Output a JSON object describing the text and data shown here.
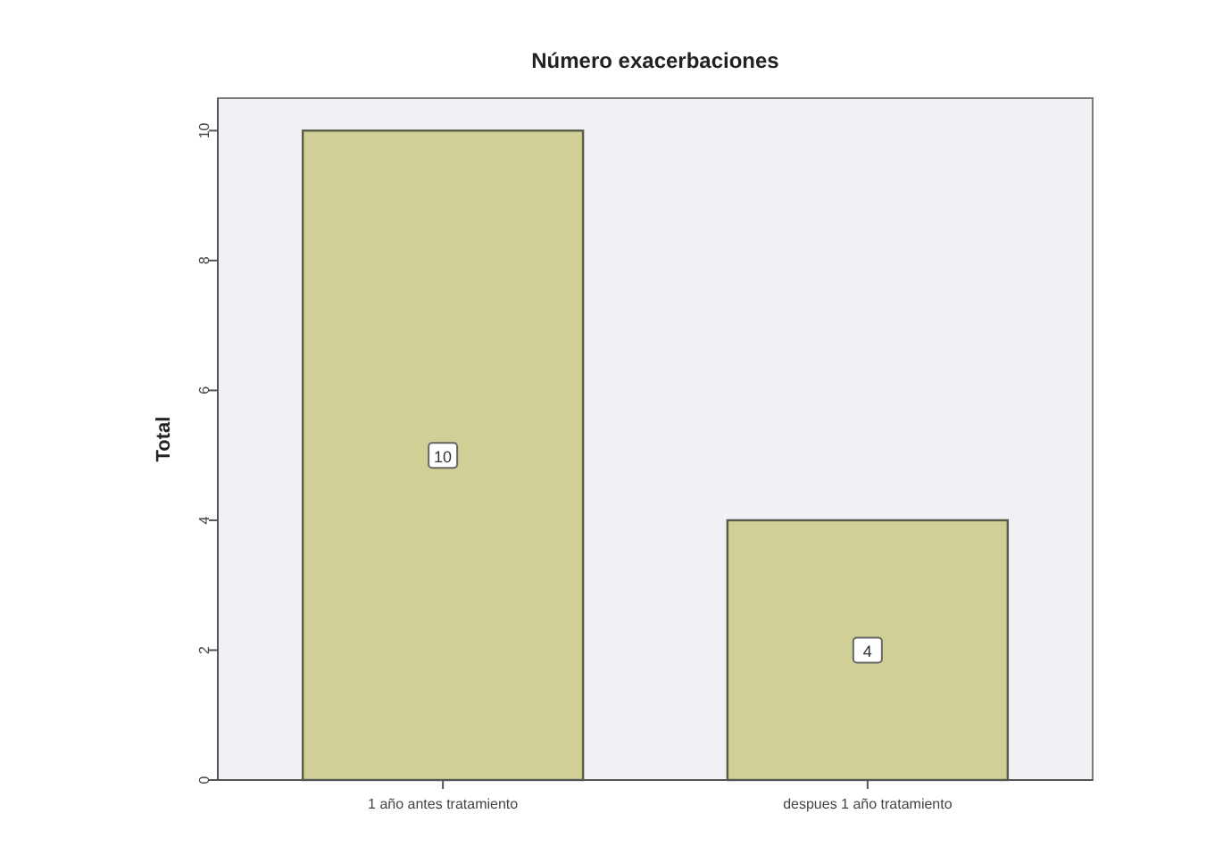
{
  "chart_data": {
    "type": "bar",
    "title": "Número exacerbaciones",
    "ylabel": "Total",
    "categories": [
      "1 año antes tratamiento",
      "despues 1 año tratamiento"
    ],
    "values": [
      10,
      4
    ],
    "color": "#d0cf95",
    "ylim": [
      0,
      10.5
    ],
    "yticks": [
      0,
      2,
      4,
      6,
      8,
      10
    ],
    "grid": false,
    "data_labels": true
  }
}
